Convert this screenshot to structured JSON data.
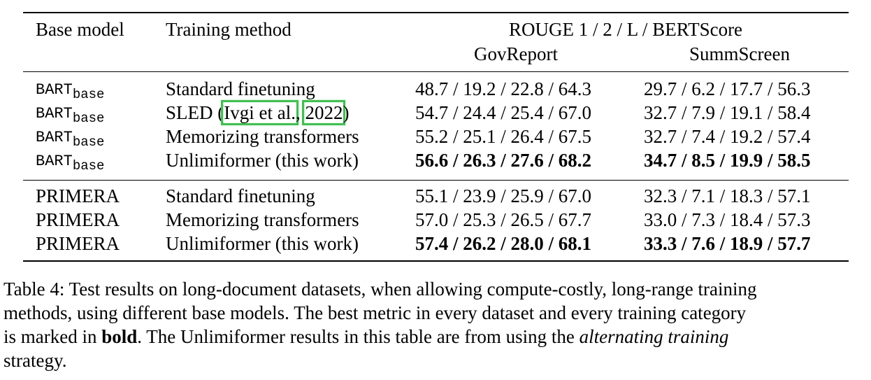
{
  "table": {
    "headers": {
      "base_model": "Base model",
      "training_method": "Training method",
      "metrics": "ROUGE 1 / 2 / L / BERTScore",
      "datasets": [
        "GovReport",
        "SummScreen"
      ]
    },
    "groups": [
      {
        "rows": [
          {
            "model": "BART",
            "model_sub": "base",
            "method": "Standard finetuning",
            "govreport": "48.7 / 19.2 / 22.8 / 64.3",
            "summscreen": "29.7 / 6.2 / 17.7 / 56.3",
            "bold": false
          },
          {
            "model": "BART",
            "model_sub": "base",
            "method_prefix": "SLED (",
            "cite_author": "Ivgi et al.",
            "cite_sep": ", ",
            "cite_year": "2022",
            "method_suffix": ")",
            "govreport": "54.7 / 24.4 / 25.4 / 67.0",
            "summscreen": "32.7 / 7.9 / 19.1 / 58.4",
            "bold": false
          },
          {
            "model": "BART",
            "model_sub": "base",
            "method": "Memorizing transformers",
            "govreport": "55.2 / 25.1 / 26.4 / 67.5",
            "summscreen": "32.7 / 7.4 / 19.2 / 57.4",
            "bold": false
          },
          {
            "model": "BART",
            "model_sub": "base",
            "method": "Unlimiformer (this work)",
            "govreport": "56.6 / 26.3 / 27.6 / 68.2",
            "summscreen": "34.7 / 8.5 / 19.9 / 58.5",
            "bold": true
          }
        ]
      },
      {
        "rows": [
          {
            "model": "PRIMERA",
            "method": "Standard finetuning",
            "govreport": "55.1 / 23.9 / 25.9 / 67.0",
            "summscreen": "32.3 / 7.1 / 18.3 / 57.1",
            "bold": false
          },
          {
            "model": "PRIMERA",
            "method": "Memorizing transformers",
            "govreport": "57.0 / 25.3 / 26.5 / 67.7",
            "summscreen": "33.0 / 7.3 / 18.4 / 57.3",
            "bold": false
          },
          {
            "model": "PRIMERA",
            "method": "Unlimiformer (this work)",
            "govreport": "57.4 / 26.2 / 28.0 / 68.1",
            "summscreen": "33.3 / 7.6 / 18.9 / 57.7",
            "bold": true
          }
        ]
      }
    ]
  },
  "caption": {
    "line1": "Table 4: Test results on long-document datasets, when allowing compute-costly, long-range training",
    "line2": "methods, using different base models. The best metric in every dataset and every training category",
    "line3_a": "is marked in ",
    "line3_bold": "bold",
    "line3_b": ". The Unlimiformer results in this table are from using the ",
    "line3_italic": "alternating training",
    "line4": "strategy."
  },
  "colors": {
    "text": "#000000",
    "citation_box": "#2ecc40",
    "background": "#ffffff"
  }
}
